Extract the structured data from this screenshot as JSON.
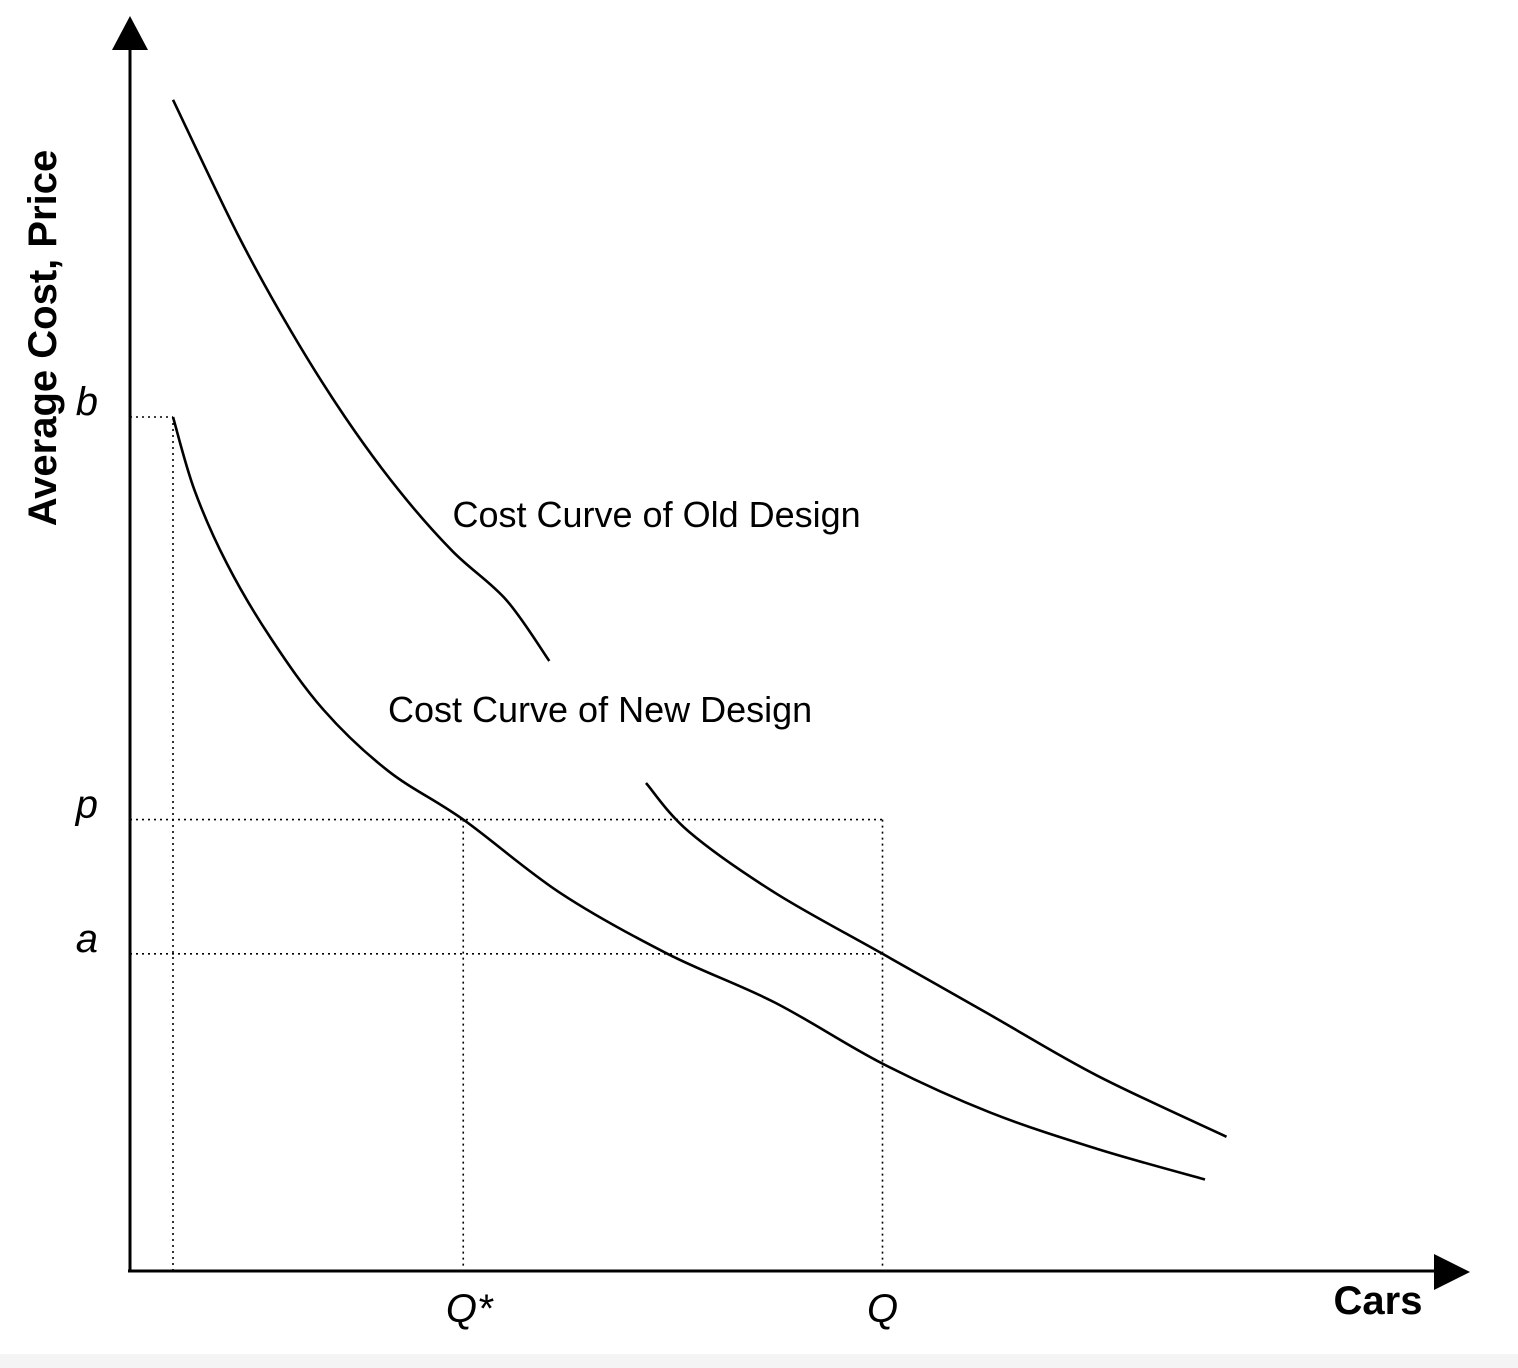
{
  "chart_data": {
    "type": "line",
    "title": "",
    "xlabel": "Cars",
    "ylabel": "Average Cost, Price",
    "grid": false,
    "legend": "none",
    "x_ticks": [
      {
        "label": "Q*",
        "value": 0.31
      },
      {
        "label": "Q",
        "value": 0.7
      }
    ],
    "y_ticks": [
      {
        "label": "b",
        "value": 0.7
      },
      {
        "label": "p",
        "value": 0.37
      },
      {
        "label": "a",
        "value": 0.26
      }
    ],
    "series": [
      {
        "name": "Cost Curve of Old Design",
        "segments": [
          [
            [
              0.04,
              0.96
            ],
            [
              0.1,
              0.85
            ],
            [
              0.15,
              0.77
            ],
            [
              0.2,
              0.7
            ],
            [
              0.25,
              0.64
            ],
            [
              0.3,
              0.59
            ],
            [
              0.35,
              0.55
            ],
            [
              0.39,
              0.5
            ]
          ],
          [
            [
              0.48,
              0.4
            ],
            [
              0.52,
              0.36
            ],
            [
              0.6,
              0.31
            ],
            [
              0.7,
              0.26
            ],
            [
              0.8,
              0.21
            ],
            [
              0.9,
              0.16
            ],
            [
              1.02,
              0.11
            ]
          ]
        ]
      },
      {
        "name": "Cost Curve of New Design",
        "segments": [
          [
            [
              0.04,
              0.7
            ],
            [
              0.06,
              0.64
            ],
            [
              0.09,
              0.58
            ],
            [
              0.13,
              0.52
            ],
            [
              0.18,
              0.46
            ],
            [
              0.24,
              0.41
            ],
            [
              0.31,
              0.37
            ],
            [
              0.4,
              0.31
            ],
            [
              0.5,
              0.26
            ],
            [
              0.6,
              0.22
            ],
            [
              0.7,
              0.17
            ],
            [
              0.8,
              0.13
            ],
            [
              0.9,
              0.1
            ],
            [
              1.0,
              0.075
            ]
          ]
        ]
      }
    ],
    "annotations": [
      {
        "text": "Cost Curve of Old Design",
        "x": 0.3,
        "y": 0.61
      },
      {
        "text": "Cost Curve of New Design",
        "x": 0.24,
        "y": 0.45
      }
    ],
    "guides": [
      {
        "from": [
          0.0,
          0.7
        ],
        "to": [
          0.04,
          0.7
        ]
      },
      {
        "from": [
          0.04,
          0.7
        ],
        "to": [
          0.04,
          0.0
        ]
      },
      {
        "from": [
          0.0,
          0.37
        ],
        "to": [
          0.7,
          0.37
        ]
      },
      {
        "from": [
          0.7,
          0.37
        ],
        "to": [
          0.7,
          0.0
        ]
      },
      {
        "from": [
          0.31,
          0.37
        ],
        "to": [
          0.31,
          0.0
        ]
      },
      {
        "from": [
          0.0,
          0.26
        ],
        "to": [
          0.7,
          0.26
        ]
      }
    ],
    "xlim": [
      0,
      1.2
    ],
    "ylim": [
      0,
      1.05
    ]
  }
}
